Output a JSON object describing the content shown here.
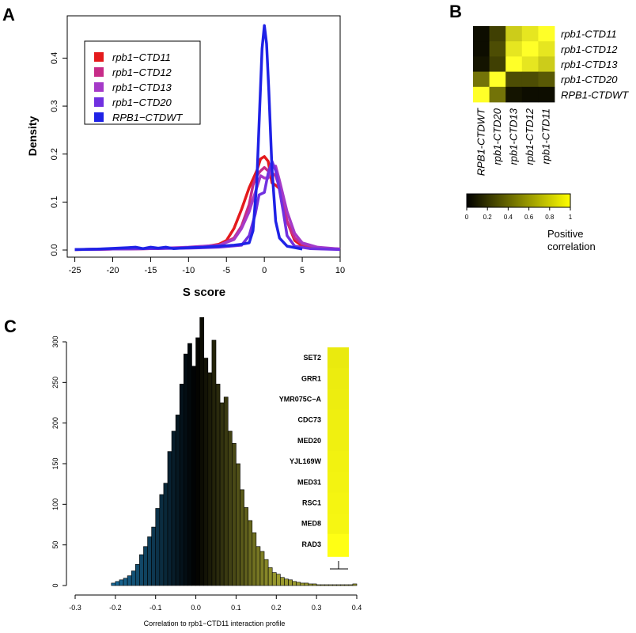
{
  "panels": {
    "a": {
      "letter": "A"
    },
    "b": {
      "letter": "B"
    },
    "c": {
      "letter": "C"
    }
  },
  "chart_data": [
    {
      "type": "line",
      "panel": "A",
      "xlabel": "S score",
      "ylabel": "Density",
      "xlim": [
        -26,
        10
      ],
      "ylim": [
        0,
        0.47
      ],
      "xticks": [
        -25,
        -20,
        -15,
        -10,
        -5,
        0,
        5,
        10
      ],
      "yticks": [
        0.0,
        0.1,
        0.2,
        0.3,
        0.4
      ],
      "legend_position": "top-left",
      "series": [
        {
          "name": "rpb1−CTD11",
          "color": "#e41a1c",
          "values": [
            [
              -25,
              0.001
            ],
            [
              -20,
              0.002
            ],
            [
              -15,
              0.003
            ],
            [
              -10,
              0.005
            ],
            [
              -8,
              0.007
            ],
            [
              -6,
              0.012
            ],
            [
              -5,
              0.02
            ],
            [
              -4,
              0.045
            ],
            [
              -3,
              0.085
            ],
            [
              -2,
              0.13
            ],
            [
              -1,
              0.165
            ],
            [
              -0.5,
              0.19
            ],
            [
              0,
              0.195
            ],
            [
              0.5,
              0.185
            ],
            [
              1,
              0.14
            ],
            [
              1.5,
              0.135
            ],
            [
              2,
              0.128
            ],
            [
              3,
              0.06
            ],
            [
              4,
              0.02
            ],
            [
              5,
              0.008
            ],
            [
              7,
              0.004
            ],
            [
              10,
              0.002
            ]
          ]
        },
        {
          "name": "rpb1−CTD12",
          "color": "#c72c88",
          "values": [
            [
              -25,
              0.001
            ],
            [
              -20,
              0.002
            ],
            [
              -15,
              0.003
            ],
            [
              -10,
              0.005
            ],
            [
              -6,
              0.009
            ],
            [
              -4,
              0.025
            ],
            [
              -3,
              0.05
            ],
            [
              -2,
              0.095
            ],
            [
              -1.5,
              0.135
            ],
            [
              -1,
              0.155
            ],
            [
              -0.5,
              0.165
            ],
            [
              0,
              0.172
            ],
            [
              0.5,
              0.165
            ],
            [
              1,
              0.16
            ],
            [
              1.5,
              0.155
            ],
            [
              2,
              0.13
            ],
            [
              3,
              0.06
            ],
            [
              4,
              0.025
            ],
            [
              5,
              0.012
            ],
            [
              7,
              0.005
            ],
            [
              10,
              0.002
            ]
          ]
        },
        {
          "name": "rpb1−CTD13",
          "color": "#a53ac8",
          "values": [
            [
              -25,
              0.001
            ],
            [
              -20,
              0.002
            ],
            [
              -15,
              0.003
            ],
            [
              -10,
              0.006
            ],
            [
              -6,
              0.01
            ],
            [
              -4,
              0.022
            ],
            [
              -3,
              0.045
            ],
            [
              -2,
              0.08
            ],
            [
              -1,
              0.13
            ],
            [
              -0.5,
              0.155
            ],
            [
              0,
              0.15
            ],
            [
              0.5,
              0.15
            ],
            [
              1,
              0.172
            ],
            [
              1.5,
              0.175
            ],
            [
              2,
              0.145
            ],
            [
              3,
              0.08
            ],
            [
              4,
              0.035
            ],
            [
              5,
              0.015
            ],
            [
              7,
              0.006
            ],
            [
              10,
              0.002
            ]
          ]
        },
        {
          "name": "rpb1−CTD20",
          "color": "#7030e0",
          "values": [
            [
              -25,
              0.001
            ],
            [
              -20,
              0.002
            ],
            [
              -15,
              0.003
            ],
            [
              -10,
              0.004
            ],
            [
              -6,
              0.006
            ],
            [
              -3,
              0.01
            ],
            [
              -2,
              0.03
            ],
            [
              -1.2,
              0.075
            ],
            [
              -0.7,
              0.115
            ],
            [
              0,
              0.12
            ],
            [
              0.5,
              0.16
            ],
            [
              1,
              0.185
            ],
            [
              1.5,
              0.165
            ],
            [
              2,
              0.125
            ],
            [
              2.5,
              0.08
            ],
            [
              3,
              0.03
            ],
            [
              4,
              0.008
            ],
            [
              6,
              0.003
            ],
            [
              10,
              0.001
            ]
          ]
        },
        {
          "name": "RPB1−CTDWT",
          "color": "#1f22e6",
          "values": [
            [
              -25,
              0.001
            ],
            [
              -22,
              0.002
            ],
            [
              -18,
              0.005
            ],
            [
              -17,
              0.006
            ],
            [
              -16,
              0.003
            ],
            [
              -15,
              0.006
            ],
            [
              -14,
              0.004
            ],
            [
              -13,
              0.006
            ],
            [
              -12,
              0.003
            ],
            [
              -10,
              0.005
            ],
            [
              -8,
              0.006
            ],
            [
              -6,
              0.008
            ],
            [
              -4,
              0.01
            ],
            [
              -3,
              0.012
            ],
            [
              -2,
              0.015
            ],
            [
              -1.5,
              0.04
            ],
            [
              -1,
              0.14
            ],
            [
              -0.6,
              0.3
            ],
            [
              -0.3,
              0.42
            ],
            [
              0,
              0.468
            ],
            [
              0.3,
              0.43
            ],
            [
              0.6,
              0.33
            ],
            [
              1,
              0.17
            ],
            [
              1.5,
              0.06
            ],
            [
              2,
              0.025
            ],
            [
              3,
              0.008
            ],
            [
              5,
              0.002
            ]
          ]
        }
      ]
    },
    {
      "type": "heatmap",
      "panel": "B",
      "rows": [
        "rpb1-CTD11",
        "rpb1-CTD12",
        "rpb1-CTD13",
        "rpb1-CTD20",
        "RPB1-CTDWT"
      ],
      "cols": [
        "RPB1-CTDWT",
        "rpb1-CTD20",
        "rpb1-CTD13",
        "rpb1-CTD12",
        "rpb1-CTD11"
      ],
      "values": [
        [
          0.05,
          0.25,
          0.8,
          0.9,
          1.0
        ],
        [
          0.05,
          0.3,
          0.9,
          1.0,
          0.9
        ],
        [
          0.08,
          0.25,
          1.0,
          0.9,
          0.8
        ],
        [
          0.45,
          1.0,
          0.3,
          0.3,
          0.35
        ],
        [
          1.0,
          0.45,
          0.08,
          0.05,
          0.05
        ]
      ],
      "colorbar": {
        "ticks": [
          "0",
          "0.2",
          "0.4",
          "0.6",
          "0.8",
          "1"
        ],
        "label_lines": [
          "Positive",
          "correlation"
        ],
        "low_color": "#000000",
        "high_color": "#ffff00"
      }
    },
    {
      "type": "bar",
      "panel": "C",
      "xlabel": "Correlation to rpb1−CTD11 interaction profile",
      "xlim": [
        -0.3,
        0.4
      ],
      "xticks": [
        "-0.3",
        "-0.2",
        "-0.1",
        "0.0",
        "0.1",
        "0.2",
        "0.3",
        "0.4"
      ],
      "ylim": [
        0,
        330
      ],
      "yticks": [
        0,
        50,
        100,
        150,
        200,
        250,
        300
      ],
      "bin_start": -0.21,
      "bin_width": 0.01,
      "values": [
        3,
        5,
        7,
        9,
        12,
        18,
        26,
        38,
        48,
        60,
        72,
        95,
        112,
        126,
        165,
        190,
        210,
        248,
        285,
        298,
        270,
        305,
        330,
        280,
        262,
        302,
        248,
        225,
        232,
        190,
        175,
        150,
        118,
        96,
        80,
        65,
        48,
        42,
        32,
        22,
        16,
        14,
        10,
        8,
        7,
        5,
        4,
        3,
        3,
        2,
        2,
        1,
        1,
        1,
        1,
        1,
        1,
        1,
        1,
        1,
        2
      ],
      "color_low": "#1a6fa0",
      "color_mid": "#000000",
      "color_high": "#9a9a2e",
      "inset_genes": [
        "SET2",
        "GRR1",
        "YMR075C−A",
        "CDC73",
        "MED20",
        "YJL169W",
        "MED31",
        "RSC1",
        "MED8",
        "RAD3"
      ],
      "inset_values": [
        0.72,
        0.74,
        0.76,
        0.78,
        0.8,
        0.82,
        0.84,
        0.86,
        0.88,
        1.0
      ]
    }
  ]
}
